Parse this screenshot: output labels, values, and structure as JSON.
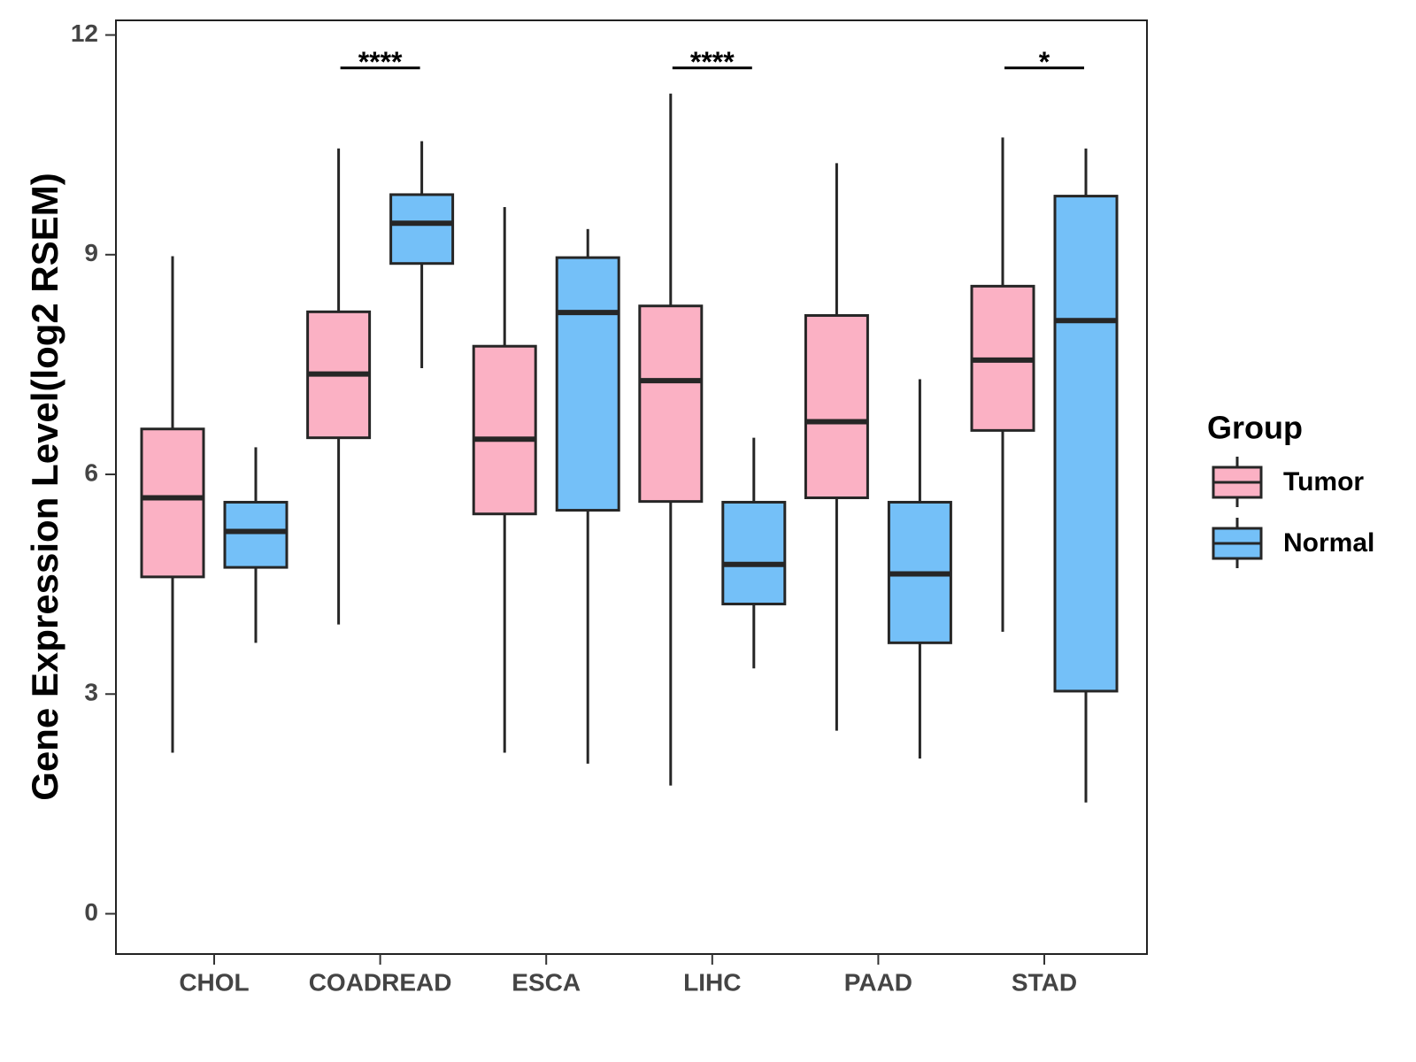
{
  "chart_data": {
    "type": "boxplot",
    "title": "",
    "xlabel": "",
    "ylabel": "Gene Expression Level(log2 RSEM)",
    "ylim": [
      -0.55,
      12.2
    ],
    "yticks": [
      0,
      3,
      6,
      9,
      12
    ],
    "ytick_labels": [
      "0",
      "3",
      "6",
      "9",
      "12"
    ],
    "grid": false,
    "categories": [
      "CHOL",
      "COADREAD",
      "ESCA",
      "LIHC",
      "PAAD",
      "STAD"
    ],
    "legend": {
      "title": "Group",
      "position": "right",
      "entries": [
        "Tumor",
        "Normal"
      ]
    },
    "colors": {
      "Tumor": "#FBB1C4",
      "Normal": "#74C0F8",
      "stroke": "#262626",
      "annotation": "#000000"
    },
    "series": [
      {
        "name": "Tumor",
        "boxes": [
          {
            "category": "CHOL",
            "min": 2.2,
            "q1": 4.6,
            "median": 5.68,
            "q3": 6.62,
            "max": 8.98
          },
          {
            "category": "COADREAD",
            "min": 3.95,
            "q1": 6.5,
            "median": 7.37,
            "q3": 8.22,
            "max": 10.45
          },
          {
            "category": "ESCA",
            "min": 2.2,
            "q1": 5.46,
            "median": 6.48,
            "q3": 7.75,
            "max": 9.65
          },
          {
            "category": "LIHC",
            "min": 1.75,
            "q1": 5.63,
            "median": 7.28,
            "q3": 8.3,
            "max": 11.2
          },
          {
            "category": "PAAD",
            "min": 2.5,
            "q1": 5.68,
            "median": 6.72,
            "q3": 8.17,
            "max": 10.25
          },
          {
            "category": "STAD",
            "min": 3.85,
            "q1": 6.6,
            "median": 7.56,
            "q3": 8.57,
            "max": 10.6
          }
        ]
      },
      {
        "name": "Normal",
        "boxes": [
          {
            "category": "CHOL",
            "min": 3.7,
            "q1": 4.73,
            "median": 5.22,
            "q3": 5.62,
            "max": 6.37
          },
          {
            "category": "COADREAD",
            "min": 7.45,
            "q1": 8.88,
            "median": 9.43,
            "q3": 9.82,
            "max": 10.55
          },
          {
            "category": "ESCA",
            "min": 2.05,
            "q1": 5.51,
            "median": 8.21,
            "q3": 8.96,
            "max": 9.35
          },
          {
            "category": "LIHC",
            "min": 3.35,
            "q1": 4.23,
            "median": 4.77,
            "q3": 5.62,
            "max": 6.5
          },
          {
            "category": "PAAD",
            "min": 2.12,
            "q1": 3.7,
            "median": 4.64,
            "q3": 5.62,
            "max": 7.3
          },
          {
            "category": "STAD",
            "min": 1.52,
            "q1": 3.04,
            "median": 8.1,
            "q3": 9.8,
            "max": 10.45
          }
        ]
      }
    ],
    "annotations": [
      {
        "category": "COADREAD",
        "label": "****",
        "y": 11.55
      },
      {
        "category": "LIHC",
        "label": "****",
        "y": 11.55
      },
      {
        "category": "STAD",
        "label": "*",
        "y": 11.55
      }
    ]
  }
}
